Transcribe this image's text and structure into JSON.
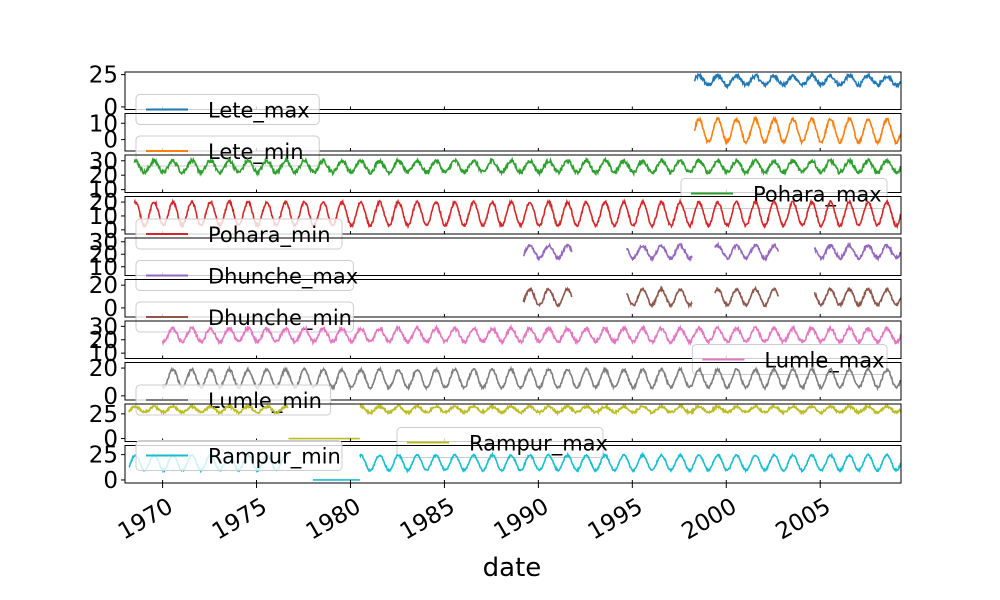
{
  "chart_data": {
    "type": "line",
    "xlabel": "date",
    "xlim": [
      1968.0,
      2009.3
    ],
    "x_ticks": [
      1970,
      1975,
      1980,
      1985,
      1990,
      1995,
      2000,
      2005
    ],
    "grid": false,
    "series": [
      {
        "name": "Lete_max",
        "color": "#1f77b4",
        "legend": "lower-left",
        "ylim": [
          -2,
          27
        ],
        "yticks": [
          0,
          25
        ],
        "mean": 20.5,
        "amplitude": 3.5,
        "noise": 1.6,
        "segments": [
          [
            1998.3,
            2009.3
          ]
        ]
      },
      {
        "name": "Lete_min",
        "color": "#ff7f0e",
        "legend": "lower-left",
        "ylim": [
          -7,
          16
        ],
        "yticks": [
          0,
          10
        ],
        "mean": 5.5,
        "amplitude": 7.0,
        "noise": 1.0,
        "segments": [
          [
            1998.3,
            2009.3
          ]
        ]
      },
      {
        "name": "Pohara_max",
        "color": "#2ca02c",
        "legend": "lower-right",
        "ylim": [
          8,
          34
        ],
        "yticks": [
          10,
          20,
          30
        ],
        "mean": 26.0,
        "amplitude": 4.0,
        "noise": 1.4,
        "segments": [
          [
            1968.5,
            2009.3
          ]
        ]
      },
      {
        "name": "Pohara_min",
        "color": "#d62728",
        "legend": "lower-left",
        "ylim": [
          -3,
          24
        ],
        "yticks": [
          0,
          10,
          20
        ],
        "mean": 11.5,
        "amplitude": 8.5,
        "noise": 1.0,
        "segments": [
          [
            1968.5,
            2009.3
          ]
        ]
      },
      {
        "name": "Dhunche_max",
        "color": "#9467bd",
        "legend": "lower-left",
        "ylim": [
          3,
          33
        ],
        "yticks": [
          10,
          20,
          30
        ],
        "mean": 22.0,
        "amplitude": 5.0,
        "noise": 1.3,
        "segments": [
          [
            1989.2,
            1991.8
          ],
          [
            1994.7,
            1998.2
          ],
          [
            1999.4,
            2002.8
          ],
          [
            2004.7,
            2009.3
          ]
        ]
      },
      {
        "name": "Dhunche_min",
        "color": "#8c564b",
        "legend": "lower-left",
        "ylim": [
          -8,
          25
        ],
        "yticks": [
          0,
          20
        ],
        "mean": 9.5,
        "amplitude": 7.0,
        "noise": 1.2,
        "segments": [
          [
            1989.2,
            1991.8
          ],
          [
            1994.7,
            1998.2
          ],
          [
            1999.4,
            2002.8
          ],
          [
            2004.7,
            2009.3
          ]
        ]
      },
      {
        "name": "Lumle_max",
        "color": "#e377c2",
        "legend": "lower-right",
        "ylim": [
          6,
          34
        ],
        "yticks": [
          10,
          20,
          30
        ],
        "mean": 23.5,
        "amplitude": 5.0,
        "noise": 1.3,
        "segments": [
          [
            1970.0,
            2009.3
          ]
        ]
      },
      {
        "name": "Lumle_min",
        "color": "#7f7f7f",
        "legend": "lower-left",
        "ylim": [
          -3,
          24
        ],
        "yticks": [
          0,
          20
        ],
        "mean": 12.5,
        "amplitude": 6.5,
        "noise": 1.0,
        "segments": [
          [
            1970.0,
            2009.3
          ]
        ]
      },
      {
        "name": "Rampur_max",
        "color": "#bcbd22",
        "legend": "lower-center",
        "ylim": [
          -3,
          35
        ],
        "yticks": [
          0,
          25
        ],
        "mean": 29.5,
        "amplitude": 3.0,
        "noise": 1.2,
        "segments": [
          [
            1968.2,
            1976.7
          ],
          [
            1980.5,
            2009.3
          ]
        ],
        "flat": [
          [
            1976.7,
            1980.5,
            0
          ]
        ]
      },
      {
        "name": "Rampur_min",
        "color": "#17becf",
        "legend": "upper-left",
        "ylim": [
          -3,
          34
        ],
        "yticks": [
          0,
          25
        ],
        "mean": 17.0,
        "amplitude": 7.5,
        "noise": 1.0,
        "segments": [
          [
            1968.2,
            1976.7
          ],
          [
            1980.5,
            2009.3
          ]
        ],
        "flat": [
          [
            1978.0,
            1980.5,
            0
          ]
        ]
      }
    ]
  }
}
